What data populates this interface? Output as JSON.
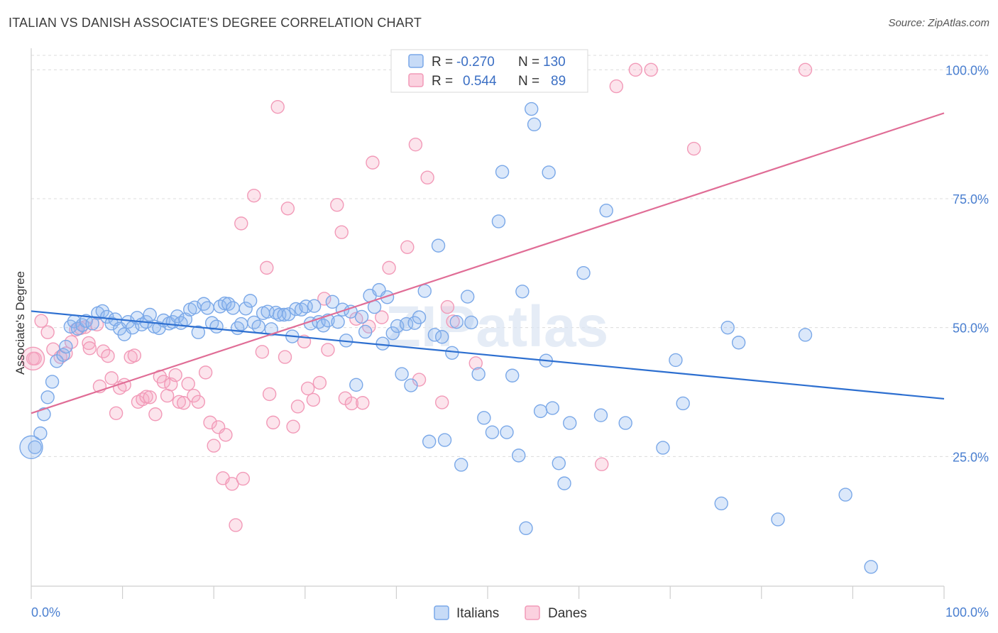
{
  "title": "ITALIAN VS DANISH ASSOCIATE'S DEGREE CORRELATION CHART",
  "source": "Source: ZipAtlas.com",
  "watermark": "ZIPatlas",
  "chart_data": {
    "type": "scatter",
    "ylabel": "Associate's Degree",
    "xlim": [
      0,
      100
    ],
    "ylim": [
      0,
      105
    ],
    "x_ticks": [
      "0.0%",
      "100.0%"
    ],
    "y_ticks": [
      {
        "value": 25,
        "label": "25.0%"
      },
      {
        "value": 50,
        "label": "50.0%"
      },
      {
        "value": 75,
        "label": "75.0%"
      },
      {
        "value": 100,
        "label": "100.0%"
      }
    ],
    "grid": "dashed horizontal",
    "legend_top": [
      {
        "r_label": "R =",
        "r_value": "-0.270",
        "n_label": "N =",
        "n_value": "130",
        "color": "#7aa8e8"
      },
      {
        "r_label": "R =",
        "r_value": "0.544",
        "n_label": "N =",
        "n_value": "89",
        "color": "#f29ab8"
      }
    ],
    "series": [
      {
        "name": "Italians",
        "color": "#7aa8e8",
        "line_color": "#2d6fd0",
        "trend": {
          "x": [
            0,
            100
          ],
          "y": [
            53.2,
            36.2
          ]
        },
        "points": [
          [
            0.4,
            26.8
          ],
          [
            1.0,
            29.5
          ],
          [
            1.4,
            33.2
          ],
          [
            1.8,
            36.5
          ],
          [
            2.3,
            39.5
          ],
          [
            2.8,
            43.5
          ],
          [
            3.5,
            44.7
          ],
          [
            3.8,
            46.3
          ],
          [
            4.3,
            50.2
          ],
          [
            4.7,
            51.2
          ],
          [
            5.1,
            49.8
          ],
          [
            5.6,
            50.5
          ],
          [
            6.0,
            51.3
          ],
          [
            6.7,
            50.8
          ],
          [
            7.3,
            52.8
          ],
          [
            7.8,
            53.2
          ],
          [
            8.3,
            52.1
          ],
          [
            8.8,
            50.8
          ],
          [
            9.2,
            51.6
          ],
          [
            9.7,
            49.8
          ],
          [
            10.2,
            48.7
          ],
          [
            10.6,
            51.1
          ],
          [
            11.1,
            50.0
          ],
          [
            11.6,
            51.9
          ],
          [
            12.1,
            50.6
          ],
          [
            12.6,
            51.1
          ],
          [
            13.0,
            52.5
          ],
          [
            13.5,
            50.2
          ],
          [
            14.0,
            49.9
          ],
          [
            14.5,
            51.4
          ],
          [
            15.1,
            50.8
          ],
          [
            15.5,
            51.1
          ],
          [
            16.0,
            52.2
          ],
          [
            16.4,
            50.9
          ],
          [
            16.9,
            51.6
          ],
          [
            17.4,
            53.5
          ],
          [
            17.9,
            53.9
          ],
          [
            18.3,
            49.1
          ],
          [
            18.9,
            54.6
          ],
          [
            19.3,
            53.8
          ],
          [
            19.8,
            50.9
          ],
          [
            20.3,
            50.2
          ],
          [
            20.7,
            54.1
          ],
          [
            21.2,
            54.7
          ],
          [
            21.6,
            54.6
          ],
          [
            22.1,
            53.8
          ],
          [
            22.6,
            49.9
          ],
          [
            23.0,
            50.7
          ],
          [
            23.5,
            53.7
          ],
          [
            24.0,
            55.2
          ],
          [
            24.4,
            51.0
          ],
          [
            24.9,
            50.2
          ],
          [
            25.4,
            52.8
          ],
          [
            25.9,
            53.1
          ],
          [
            26.3,
            49.7
          ],
          [
            26.8,
            52.9
          ],
          [
            27.2,
            52.5
          ],
          [
            27.7,
            52.5
          ],
          [
            28.2,
            52.6
          ],
          [
            28.6,
            48.3
          ],
          [
            29.0,
            53.6
          ],
          [
            29.6,
            53.5
          ],
          [
            30.1,
            54.1
          ],
          [
            30.6,
            50.8
          ],
          [
            31.0,
            54.2
          ],
          [
            31.5,
            51.1
          ],
          [
            32.0,
            50.4
          ],
          [
            32.5,
            51.4
          ],
          [
            33.0,
            55.0
          ],
          [
            33.6,
            51.1
          ],
          [
            34.1,
            53.5
          ],
          [
            34.5,
            47.5
          ],
          [
            35.0,
            53.1
          ],
          [
            35.6,
            38.9
          ],
          [
            36.2,
            52.1
          ],
          [
            36.6,
            49.2
          ],
          [
            37.1,
            56.2
          ],
          [
            37.6,
            54.0
          ],
          [
            38.1,
            57.3
          ],
          [
            38.5,
            46.9
          ],
          [
            39.0,
            55.9
          ],
          [
            39.6,
            48.9
          ],
          [
            40.1,
            50.3
          ],
          [
            40.6,
            41.0
          ],
          [
            41.1,
            50.7
          ],
          [
            41.6,
            38.8
          ],
          [
            42.0,
            50.9
          ],
          [
            42.5,
            52.0
          ],
          [
            43.1,
            57.1
          ],
          [
            43.6,
            27.9
          ],
          [
            44.2,
            48.6
          ],
          [
            44.6,
            65.9
          ],
          [
            45.0,
            48.2
          ],
          [
            45.3,
            28.2
          ],
          [
            46.1,
            45.1
          ],
          [
            46.6,
            51.1
          ],
          [
            47.1,
            23.4
          ],
          [
            47.8,
            56.0
          ],
          [
            48.2,
            51.0
          ],
          [
            49.0,
            41.0
          ],
          [
            49.6,
            32.5
          ],
          [
            50.5,
            29.7
          ],
          [
            51.2,
            70.6
          ],
          [
            51.6,
            80.2
          ],
          [
            52.1,
            29.7
          ],
          [
            52.7,
            40.7
          ],
          [
            53.4,
            25.2
          ],
          [
            53.8,
            57.0
          ],
          [
            54.2,
            11.1
          ],
          [
            54.8,
            92.4
          ],
          [
            55.1,
            89.4
          ],
          [
            55.8,
            33.8
          ],
          [
            56.4,
            43.6
          ],
          [
            56.7,
            80.1
          ],
          [
            57.1,
            34.4
          ],
          [
            57.8,
            23.7
          ],
          [
            58.4,
            19.8
          ],
          [
            59.0,
            31.5
          ],
          [
            60.5,
            60.6
          ],
          [
            62.4,
            33.0
          ],
          [
            63.0,
            72.7
          ],
          [
            65.1,
            31.5
          ],
          [
            69.2,
            26.7
          ],
          [
            70.6,
            43.7
          ],
          [
            71.4,
            35.3
          ],
          [
            75.6,
            15.9
          ],
          [
            76.3,
            50.0
          ],
          [
            77.5,
            47.1
          ],
          [
            81.8,
            12.8
          ],
          [
            84.8,
            48.6
          ],
          [
            89.2,
            17.6
          ],
          [
            92.0,
            3.6
          ]
        ],
        "big_points": [
          [
            0.0,
            26.8
          ]
        ]
      },
      {
        "name": "Danes",
        "color": "#f29ab8",
        "line_color": "#e06d96",
        "trend": {
          "x": [
            0,
            100
          ],
          "y": [
            33.4,
            91.6
          ]
        },
        "points": [
          [
            0.4,
            44.0
          ],
          [
            1.1,
            51.3
          ],
          [
            1.8,
            49.1
          ],
          [
            2.4,
            45.8
          ],
          [
            3.2,
            44.3
          ],
          [
            3.8,
            45.0
          ],
          [
            4.4,
            47.2
          ],
          [
            4.9,
            49.6
          ],
          [
            5.4,
            49.9
          ],
          [
            5.9,
            50.1
          ],
          [
            6.3,
            47.0
          ],
          [
            6.4,
            46.0
          ],
          [
            7.2,
            50.6
          ],
          [
            7.5,
            38.6
          ],
          [
            7.9,
            45.4
          ],
          [
            8.4,
            44.5
          ],
          [
            8.8,
            40.2
          ],
          [
            9.3,
            33.4
          ],
          [
            9.7,
            38.3
          ],
          [
            10.2,
            38.9
          ],
          [
            10.9,
            44.3
          ],
          [
            11.3,
            44.6
          ],
          [
            11.7,
            35.6
          ],
          [
            12.2,
            36.1
          ],
          [
            12.6,
            36.6
          ],
          [
            13.0,
            36.5
          ],
          [
            13.6,
            33.2
          ],
          [
            14.1,
            40.5
          ],
          [
            14.5,
            39.5
          ],
          [
            14.9,
            36.8
          ],
          [
            15.3,
            39.0
          ],
          [
            15.8,
            40.8
          ],
          [
            16.2,
            35.6
          ],
          [
            16.7,
            35.4
          ],
          [
            17.2,
            39.1
          ],
          [
            17.8,
            36.8
          ],
          [
            18.3,
            35.6
          ],
          [
            19.1,
            41.3
          ],
          [
            19.6,
            31.6
          ],
          [
            20.0,
            27.1
          ],
          [
            20.5,
            30.7
          ],
          [
            21.0,
            20.8
          ],
          [
            21.3,
            29.2
          ],
          [
            22.0,
            19.7
          ],
          [
            22.4,
            11.7
          ],
          [
            23.0,
            70.2
          ],
          [
            23.2,
            20.7
          ],
          [
            24.4,
            75.6
          ],
          [
            25.3,
            45.3
          ],
          [
            25.8,
            61.6
          ],
          [
            26.1,
            37.1
          ],
          [
            26.5,
            31.6
          ],
          [
            27.0,
            92.8
          ],
          [
            27.8,
            44.3
          ],
          [
            28.1,
            73.1
          ],
          [
            28.7,
            30.8
          ],
          [
            29.2,
            34.7
          ],
          [
            29.9,
            47.3
          ],
          [
            30.3,
            38.2
          ],
          [
            30.9,
            36.0
          ],
          [
            31.6,
            39.3
          ],
          [
            32.1,
            55.6
          ],
          [
            32.5,
            45.7
          ],
          [
            33.5,
            73.8
          ],
          [
            34.0,
            68.5
          ],
          [
            34.4,
            36.3
          ],
          [
            35.1,
            35.3
          ],
          [
            35.6,
            51.7
          ],
          [
            36.3,
            35.4
          ],
          [
            37.0,
            50.2
          ],
          [
            37.4,
            82.0
          ],
          [
            38.4,
            52.0
          ],
          [
            39.2,
            61.6
          ],
          [
            41.2,
            65.6
          ],
          [
            42.1,
            85.5
          ],
          [
            42.5,
            39.9
          ],
          [
            43.4,
            79.1
          ],
          [
            45.0,
            35.5
          ],
          [
            45.6,
            54.0
          ],
          [
            46.2,
            51.2
          ],
          [
            48.7,
            43.1
          ],
          [
            62.5,
            23.5
          ],
          [
            64.1,
            96.8
          ],
          [
            66.2,
            100.0
          ],
          [
            67.9,
            100.0
          ],
          [
            72.6,
            84.7
          ],
          [
            84.8,
            100.0
          ],
          [
            0.2,
            44.0
          ]
        ],
        "big_points": [
          [
            0.2,
            44.0
          ]
        ]
      }
    ]
  },
  "bottom_legend": [
    {
      "label": "Italians",
      "color": "#7aa8e8"
    },
    {
      "label": "Danes",
      "color": "#f29ab8"
    }
  ]
}
